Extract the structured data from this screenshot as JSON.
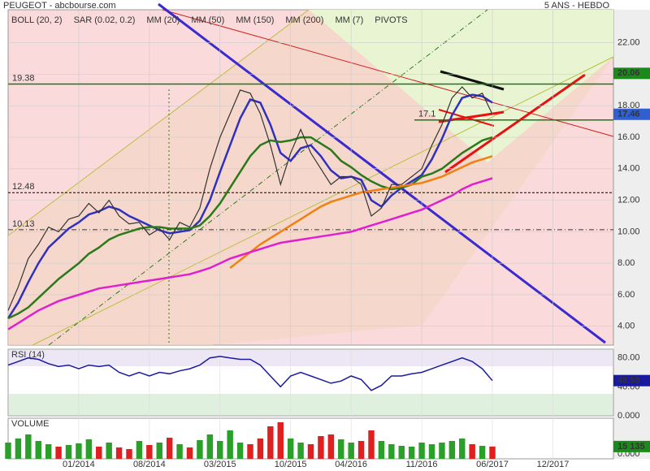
{
  "title": "PEUGEOT - abcbourse.com",
  "period": "5 ANS - HEBDO",
  "chart_data": [
    {
      "type": "line",
      "xlim": [
        "2013-06",
        "2018-06"
      ],
      "x": [
        "2013-06",
        "2013-07",
        "2013-08",
        "2013-09",
        "2013-10",
        "2013-11",
        "2013-12",
        "2014-01",
        "2014-02",
        "2014-03",
        "2014-04",
        "2014-05",
        "2014-06",
        "2014-07",
        "2014-08",
        "2014-09",
        "2014-10",
        "2014-11",
        "2014-12",
        "2015-01",
        "2015-02",
        "2015-03",
        "2015-04",
        "2015-05",
        "2015-06",
        "2015-07",
        "2015-08",
        "2015-09",
        "2015-10",
        "2015-11",
        "2015-12",
        "2016-01",
        "2016-02",
        "2016-03",
        "2016-04",
        "2016-05",
        "2016-06",
        "2016-07",
        "2016-08",
        "2016-09",
        "2016-10",
        "2016-11",
        "2016-12",
        "2017-01",
        "2017-02",
        "2017-03",
        "2017-04",
        "2017-05",
        "2017-06"
      ],
      "xticks": [
        {
          "value": "2014-01",
          "label": "01/2014"
        },
        {
          "value": "2014-08",
          "label": "08/2014"
        },
        {
          "value": "2015-03",
          "label": "03/2015"
        },
        {
          "value": "2015-10",
          "label": "10/2015"
        },
        {
          "value": "2016-04",
          "label": "04/2016"
        },
        {
          "value": "2016-11",
          "label": "11/2016"
        },
        {
          "value": "2017-06",
          "label": "06/2017"
        },
        {
          "value": "2017-12",
          "label": "12/2017"
        }
      ],
      "ylim": [
        2.8,
        24.1
      ],
      "yticks": [
        {
          "value": 4,
          "label": "4.00"
        },
        {
          "value": 6,
          "label": "6.00"
        },
        {
          "value": 8,
          "label": "8.00"
        },
        {
          "value": 10,
          "label": "10.00"
        },
        {
          "value": 12,
          "label": "12.00"
        },
        {
          "value": 14,
          "label": "14.00"
        },
        {
          "value": 16,
          "label": "16.00"
        },
        {
          "value": 18,
          "label": "18.00"
        },
        {
          "value": 20,
          "label": "20.00"
        },
        {
          "value": 22,
          "label": "22.00"
        }
      ],
      "grid": true,
      "price": [
        5.0,
        6.5,
        8.3,
        9.2,
        10.3,
        10.0,
        10.8,
        11.0,
        11.8,
        11.2,
        12.0,
        11.0,
        10.5,
        10.6,
        9.8,
        10.2,
        9.5,
        10.6,
        10.3,
        11.5,
        14.0,
        16.0,
        17.5,
        19.0,
        18.8,
        17.5,
        15.5,
        13.0,
        15.0,
        16.5,
        15.0,
        14.0,
        13.0,
        13.5,
        13.5,
        13.0,
        11.0,
        11.5,
        13.0,
        13.0,
        13.5,
        14.0,
        15.5,
        16.8,
        18.5,
        19.2,
        18.5,
        18.8,
        17.46
      ],
      "price_color": "#333333",
      "indicators": [
        {
          "name": "BOLL (20, 2)",
          "color": "#e05010"
        },
        {
          "name": "SAR (0.02, 0.2)",
          "color": "#d02020"
        },
        {
          "name": "MM (7)",
          "color": "#000000"
        },
        {
          "name": "PIVOTS",
          "color": "#555555"
        }
      ],
      "series": [
        {
          "name": "MM (20)",
          "color": "#3030c0",
          "values": [
            4.5,
            5.5,
            6.8,
            8.0,
            9.0,
            9.6,
            10.2,
            10.6,
            11.1,
            11.3,
            11.6,
            11.4,
            11.0,
            10.7,
            10.4,
            10.1,
            9.9,
            10.0,
            10.1,
            10.7,
            12.0,
            13.8,
            15.5,
            17.2,
            18.4,
            18.2,
            16.8,
            15.0,
            14.5,
            15.3,
            15.5,
            14.8,
            13.9,
            13.4,
            13.5,
            13.3,
            12.0,
            11.6,
            12.3,
            12.8,
            13.2,
            13.6,
            14.6,
            15.9,
            17.4,
            18.5,
            18.7,
            18.6,
            18.2
          ]
        },
        {
          "name": "MM (50)",
          "color": "#2a7a1a",
          "values": [
            4.5,
            4.8,
            5.2,
            5.8,
            6.4,
            7.0,
            7.5,
            8.0,
            8.6,
            9.0,
            9.5,
            9.8,
            10.0,
            10.2,
            10.3,
            10.3,
            10.2,
            10.2,
            10.2,
            10.4,
            11.0,
            11.8,
            12.8,
            13.8,
            14.8,
            15.5,
            15.8,
            15.7,
            15.8,
            16.0,
            16.0,
            15.6,
            15.2,
            14.5,
            14.1,
            13.6,
            13.2,
            12.9,
            12.7,
            12.8,
            13.0,
            13.5,
            13.7,
            14.0,
            14.5,
            15.0,
            15.4,
            15.8,
            16.0
          ]
        },
        {
          "name": "MM (150)",
          "color": "#f08010",
          "values": [
            null,
            null,
            null,
            null,
            null,
            null,
            null,
            null,
            null,
            null,
            null,
            null,
            null,
            null,
            null,
            null,
            null,
            null,
            null,
            null,
            null,
            null,
            7.7,
            8.2,
            8.7,
            9.2,
            9.6,
            10.0,
            10.4,
            10.8,
            11.2,
            11.6,
            11.9,
            12.1,
            12.3,
            12.5,
            12.6,
            12.7,
            12.8,
            12.9,
            13.0,
            13.1,
            13.3,
            13.5,
            13.8,
            14.1,
            14.4,
            14.6,
            14.8
          ]
        },
        {
          "name": "MM (200)",
          "color": "#e020d0",
          "values": [
            3.8,
            4.2,
            4.6,
            5.0,
            5.3,
            5.6,
            5.8,
            6.0,
            6.2,
            6.4,
            6.5,
            6.6,
            6.7,
            6.8,
            6.9,
            7.0,
            7.1,
            7.2,
            7.3,
            7.5,
            7.7,
            8.0,
            8.3,
            8.5,
            8.7,
            8.9,
            9.1,
            9.3,
            9.4,
            9.5,
            9.6,
            9.7,
            9.8,
            9.9,
            10.0,
            10.2,
            10.4,
            10.6,
            10.8,
            11.0,
            11.2,
            11.4,
            11.7,
            12.0,
            12.3,
            12.7,
            13.0,
            13.2,
            13.4
          ]
        }
      ],
      "levels": [
        {
          "value": 19.38,
          "color": "#1a7a1a"
        },
        {
          "value": 12.48,
          "color": "#000000"
        },
        {
          "value": 10.13,
          "color": "#333333"
        },
        {
          "value": 17.1,
          "color": "#1a7a1a"
        }
      ],
      "tags": [
        {
          "value": 20.06,
          "color": "#1a8a1a"
        },
        {
          "value": 17.46,
          "color": "#2f5fd0"
        }
      ]
    },
    {
      "type": "line",
      "title": "RSI (14)",
      "color": "#1a1aa0",
      "ylim": [
        0,
        92
      ],
      "yticks": [
        {
          "value": 80,
          "label": "80.00"
        },
        {
          "value": 40,
          "label": "40.00"
        },
        {
          "value": 0,
          "label": "0.000"
        }
      ],
      "values": [
        70,
        75,
        80,
        78,
        72,
        68,
        70,
        65,
        70,
        68,
        70,
        60,
        55,
        60,
        55,
        60,
        58,
        62,
        65,
        70,
        80,
        82,
        80,
        78,
        78,
        70,
        55,
        40,
        55,
        60,
        55,
        50,
        45,
        48,
        55,
        50,
        35,
        42,
        55,
        55,
        58,
        60,
        65,
        70,
        75,
        80,
        75,
        65,
        48.59
      ],
      "tag_color": "#1a1aa0"
    },
    {
      "type": "bar",
      "title": "VOLUME",
      "ylim": [
        0,
        50000
      ],
      "yticks": [
        {
          "value": 0,
          "label": "0.000"
        }
      ],
      "up_color": "#2aa02a",
      "down_color": "#e02020",
      "values": [
        20000,
        25000,
        30000,
        22000,
        18000,
        15000,
        17000,
        19000,
        24000,
        15000,
        20000,
        14000,
        12000,
        22000,
        17000,
        20000,
        26000,
        18000,
        14000,
        23000,
        30000,
        22000,
        35000,
        20000,
        18000,
        25000,
        40000,
        45000,
        25000,
        20000,
        18000,
        28000,
        30000,
        24000,
        20000,
        22000,
        35000,
        22000,
        18000,
        16000,
        15000,
        20000,
        18000,
        20000,
        22000,
        25000,
        18000,
        16000,
        15135
      ],
      "last_label": {
        "value": 15135,
        "label": "15 135"
      },
      "tag_color": "#1a8a1a"
    }
  ]
}
